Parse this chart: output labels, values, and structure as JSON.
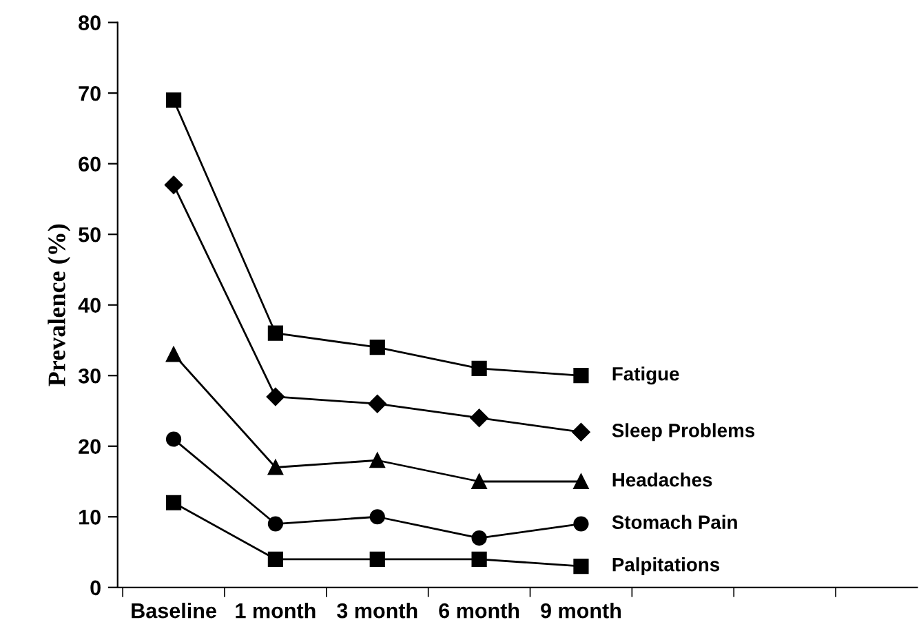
{
  "chart_data": {
    "type": "line",
    "ylabel": "Prevalence (%)",
    "categories": [
      "Baseline",
      "1 month",
      "3 month",
      "6 month",
      "9 month"
    ],
    "ylim": [
      0,
      80
    ],
    "yticks": [
      0,
      10,
      20,
      30,
      40,
      50,
      60,
      70,
      80
    ],
    "grid": false,
    "legend": false,
    "line_style": "solid",
    "series": [
      {
        "name": "Fatigue",
        "color": "#000000",
        "marker": "square",
        "values": [
          69,
          36,
          34,
          31,
          30
        ]
      },
      {
        "name": "Sleep Problems",
        "color": "#000000",
        "marker": "diamond",
        "values": [
          57,
          27,
          26,
          24,
          22
        ]
      },
      {
        "name": "Headaches",
        "color": "#000000",
        "marker": "triangle",
        "values": [
          33,
          17,
          18,
          15,
          15
        ]
      },
      {
        "name": "Stomach Pain",
        "color": "#000000",
        "marker": "circle",
        "values": [
          21,
          9,
          10,
          7,
          9
        ]
      },
      {
        "name": "Palpitations",
        "color": "#000000",
        "marker": "square",
        "values": [
          12,
          4,
          4,
          4,
          3
        ]
      }
    ]
  }
}
